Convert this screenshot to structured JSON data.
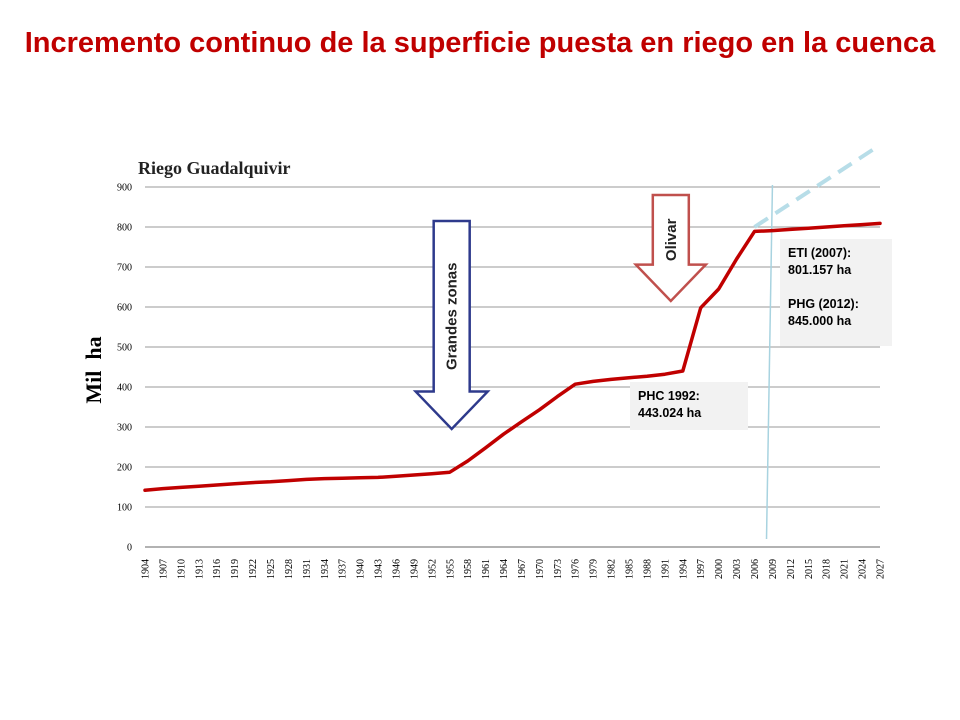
{
  "slide": {
    "title": "Incremento continuo de la superficie puesta en riego en la cuenca"
  },
  "chart_data": {
    "type": "line",
    "title": "Riego Guadalquivir",
    "ylabel": "Mil  ha",
    "xlabel": "",
    "ylim": [
      0,
      900
    ],
    "yticks": [
      0,
      100,
      200,
      300,
      400,
      500,
      600,
      700,
      800,
      900
    ],
    "grid": "horizontal",
    "categories": [
      "1904",
      "1907",
      "1910",
      "1913",
      "1916",
      "1919",
      "1922",
      "1925",
      "1928",
      "1931",
      "1934",
      "1937",
      "1940",
      "1943",
      "1946",
      "1949",
      "1952",
      "1955",
      "1958",
      "1961",
      "1964",
      "1967",
      "1970",
      "1973",
      "1976",
      "1979",
      "1982",
      "1985",
      "1988",
      "1991",
      "1994",
      "1997",
      "2000",
      "2003",
      "2006",
      "2009",
      "2012",
      "2015",
      "2018",
      "2021",
      "2024",
      "2027"
    ],
    "series": [
      {
        "color": "#c00000",
        "style": "solid",
        "points": [
          [
            "1904",
            142
          ],
          [
            "1907",
            146
          ],
          [
            "1910",
            149
          ],
          [
            "1913",
            152
          ],
          [
            "1916",
            155
          ],
          [
            "1919",
            158
          ],
          [
            "1922",
            161
          ],
          [
            "1925",
            163
          ],
          [
            "1928",
            166
          ],
          [
            "1931",
            169
          ],
          [
            "1934",
            171
          ],
          [
            "1937",
            172
          ],
          [
            "1940",
            173
          ],
          [
            "1943",
            174
          ],
          [
            "1946",
            177
          ],
          [
            "1949",
            180
          ],
          [
            "1952",
            183
          ],
          [
            "1955",
            187
          ],
          [
            "1958",
            215
          ],
          [
            "1961",
            248
          ],
          [
            "1964",
            282
          ],
          [
            "1967",
            313
          ],
          [
            "1970",
            343
          ],
          [
            "1973",
            376
          ],
          [
            "1976",
            407
          ],
          [
            "1979",
            414
          ],
          [
            "1982",
            419
          ],
          [
            "1985",
            423
          ],
          [
            "1988",
            427
          ],
          [
            "1991",
            432
          ],
          [
            "1994",
            440
          ],
          [
            "1997",
            598
          ],
          [
            "2000",
            645
          ],
          [
            "2003",
            720
          ],
          [
            "2006",
            789
          ],
          [
            "2009",
            791
          ],
          [
            "2012",
            794
          ],
          [
            "2015",
            797
          ],
          [
            "2018",
            800
          ],
          [
            "2021",
            803
          ],
          [
            "2024",
            806
          ],
          [
            "2027",
            809
          ]
        ]
      },
      {
        "color": "#b7dde8",
        "style": "dashed",
        "points": [
          [
            "2006",
            800
          ],
          [
            "2027",
            1005
          ]
        ]
      }
    ],
    "reference_line": {
      "color": "#a8d3e0",
      "points": [
        [
          "2006",
          20
        ],
        [
          "2009",
          905
        ]
      ]
    },
    "annotations": {
      "arrow_grandes_zonas": {
        "label": "Grandes zonas",
        "category": "1958",
        "direction": "down",
        "from": 815,
        "to": 295,
        "fill": "#ffffff",
        "stroke": "#2e3a8c"
      },
      "arrow_olivar": {
        "label": "Olivar",
        "category": "1994",
        "direction": "down",
        "from": 880,
        "to": 615,
        "fill": "#ffffff",
        "stroke": "#c0504d"
      },
      "note_phc": {
        "lines": [
          "PHC 1992:",
          "443.024 ha"
        ]
      },
      "note_eti": {
        "lines": [
          "ETI (2007):",
          "801.157 ha",
          "",
          "PHG (2012):",
          "845.000 ha"
        ]
      }
    }
  }
}
